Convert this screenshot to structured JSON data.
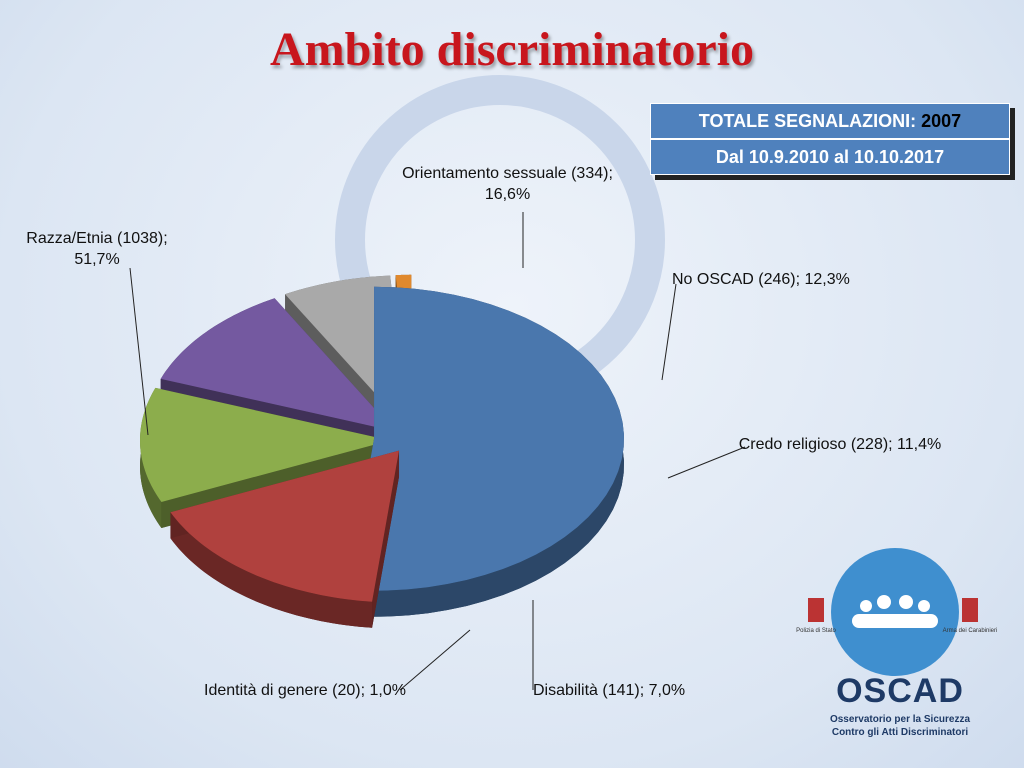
{
  "chart_data": {
    "type": "pie",
    "title": "Ambito discriminatorio",
    "categories": [
      "Razza/Etnia",
      "Orientamento sessuale",
      "No OSCAD",
      "Credo religioso",
      "Disabilità",
      "Identità di genere"
    ],
    "values": [
      1038,
      334,
      246,
      228,
      141,
      20
    ],
    "value_labels": [
      "(1038); 51,7%",
      "(334); 16,6%",
      "(246); 12,3%",
      "(228); 11,4%",
      "(141); 7,0%",
      "(20); 1,0%"
    ],
    "colors": [
      "#4a77ad",
      "#b0413e",
      "#8cad4c",
      "#7459a0",
      "#a9a9a9",
      "#e0892e"
    ]
  },
  "total_box": {
    "label": "TOTALE SEGNALAZIONI:",
    "total": "2007",
    "period": "Dal 10.9.2010 al 10.10.2017"
  },
  "logo": {
    "name": "OSCAD",
    "line1": "Osservatorio per la Sicurezza",
    "line2": "Contro gli Atti Discriminatori",
    "left": "Polizia di Stato",
    "right": "Arma dei Carabinieri"
  }
}
